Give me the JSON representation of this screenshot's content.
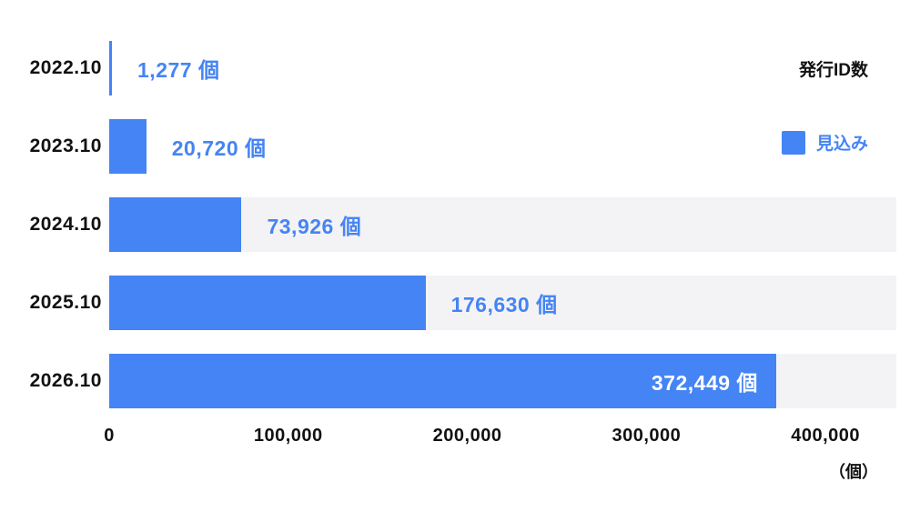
{
  "chart_data": {
    "type": "bar",
    "orientation": "horizontal",
    "title": "発行ID数",
    "legend": [
      {
        "label": "見込み",
        "color": "#4584F4"
      }
    ],
    "categories": [
      "2022.10",
      "2023.10",
      "2024.10",
      "2025.10",
      "2026.10"
    ],
    "values": [
      1277,
      20720,
      73926,
      176630,
      372449
    ],
    "unit": "個",
    "rows": [
      {
        "category": "2022.10",
        "value": 1277,
        "label": "1,277 個",
        "label_inside": false,
        "track_color": "#FFFFFF"
      },
      {
        "category": "2023.10",
        "value": 20720,
        "label": "20,720 個",
        "label_inside": false,
        "track_color": "#FFFFFF"
      },
      {
        "category": "2024.10",
        "value": 73926,
        "label": "73,926 個",
        "label_inside": false,
        "track_color": "#F3F3F5"
      },
      {
        "category": "2025.10",
        "value": 176630,
        "label": "176,630 個",
        "label_inside": false,
        "track_color": "#F3F3F5"
      },
      {
        "category": "2026.10",
        "value": 372449,
        "label": "372,449 個",
        "label_inside": true,
        "track_color": "#F3F3F5"
      }
    ],
    "axis": {
      "max": 400000,
      "unit_label": "（個）",
      "ticks": [
        {
          "label": "0",
          "value": 0
        },
        {
          "label": "100,000",
          "value": 100000
        },
        {
          "label": "200,000",
          "value": 200000
        },
        {
          "label": "300,000",
          "value": 300000
        },
        {
          "label": "400,000",
          "value": 400000
        }
      ]
    },
    "layout_hints": {
      "grid": false,
      "legend_position": "top-right"
    }
  },
  "colors": {
    "bar_blue": "#4584F4",
    "track_gray": "#F3F3F5",
    "text_black": "#111111",
    "inside_label_white": "#FFFFFF"
  }
}
